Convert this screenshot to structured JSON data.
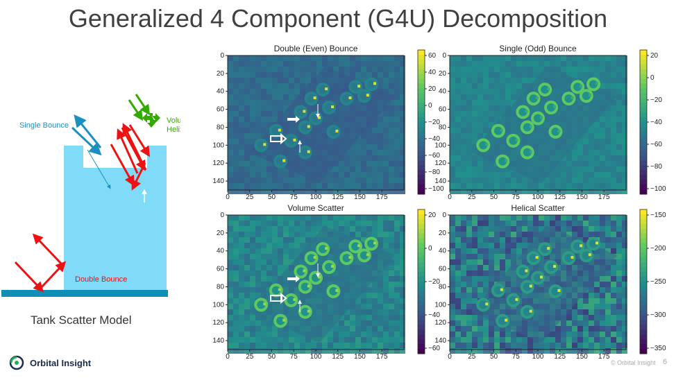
{
  "slide": {
    "title": "Generalized 4 Component (G4U) Decomposition",
    "page_number": "6",
    "copyright": "© Orbital Insight"
  },
  "logo": {
    "name": "Orbital Insight",
    "icon": "orbital-insight-logo-icon"
  },
  "diagram": {
    "caption": "Tank Scatter Model",
    "labels": {
      "single_bounce": "Single Bounce",
      "volume_line1": "Volume/",
      "volume_line2": "Helix",
      "double_bounce": "Double Bounce"
    },
    "colors": {
      "tank": "#7fdbf7",
      "ground": "#0f8fb8",
      "single": "#1b8fbf",
      "double": "#ee1111",
      "volume": "#33aa00"
    }
  },
  "panels": [
    {
      "id": "double",
      "title": "Double (Even) Bounce",
      "x_ticks": [
        "0",
        "25",
        "50",
        "75",
        "100",
        "125",
        "150",
        "175"
      ],
      "y_ticks": [
        "0",
        "20",
        "40",
        "60",
        "80",
        "100",
        "120",
        "140"
      ],
      "cbar_ticks": [
        "60",
        "40",
        "20",
        "0",
        "−20",
        "−40",
        "−60",
        "−80",
        "−100"
      ]
    },
    {
      "id": "single",
      "title": "Single (Odd) Bounce",
      "x_ticks": [
        "0",
        "25",
        "50",
        "75",
        "100",
        "125",
        "150",
        "175"
      ],
      "y_ticks": [
        "0",
        "20",
        "40",
        "60",
        "80",
        "100",
        "120",
        "140"
      ],
      "cbar_ticks": [
        "20",
        "0",
        "−20",
        "−40",
        "−60",
        "−80",
        "−100"
      ]
    },
    {
      "id": "volume",
      "title": "Volume Scatter",
      "x_ticks": [
        "0",
        "25",
        "50",
        "75",
        "100",
        "125",
        "150",
        "175"
      ],
      "y_ticks": [
        "0",
        "20",
        "40",
        "60",
        "80",
        "100",
        "120",
        "140"
      ],
      "cbar_ticks": [
        "20",
        "0",
        "−20",
        "−40",
        "−60"
      ]
    },
    {
      "id": "helical",
      "title": "Helical Scatter",
      "x_ticks": [
        "0",
        "25",
        "50",
        "75",
        "100",
        "125",
        "150",
        "175"
      ],
      "y_ticks": [
        "0",
        "20",
        "40",
        "60",
        "80",
        "100",
        "120",
        "140"
      ],
      "cbar_ticks": [
        "−150",
        "−200",
        "−250",
        "−300",
        "−350"
      ]
    }
  ]
}
